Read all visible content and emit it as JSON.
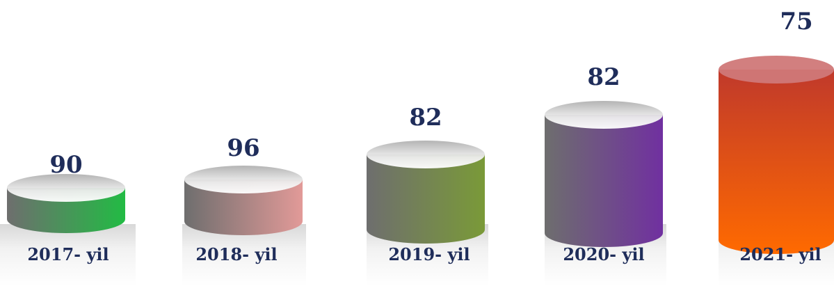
{
  "items": [
    {
      "label": "2017- yil",
      "value": "90"
    },
    {
      "label": "2018- yil",
      "value": "96"
    },
    {
      "label": "2019- yil",
      "value": "82"
    },
    {
      "label": "2020- yil",
      "value": "82"
    },
    {
      "label": "2021- yil",
      "value": "75"
    }
  ]
}
